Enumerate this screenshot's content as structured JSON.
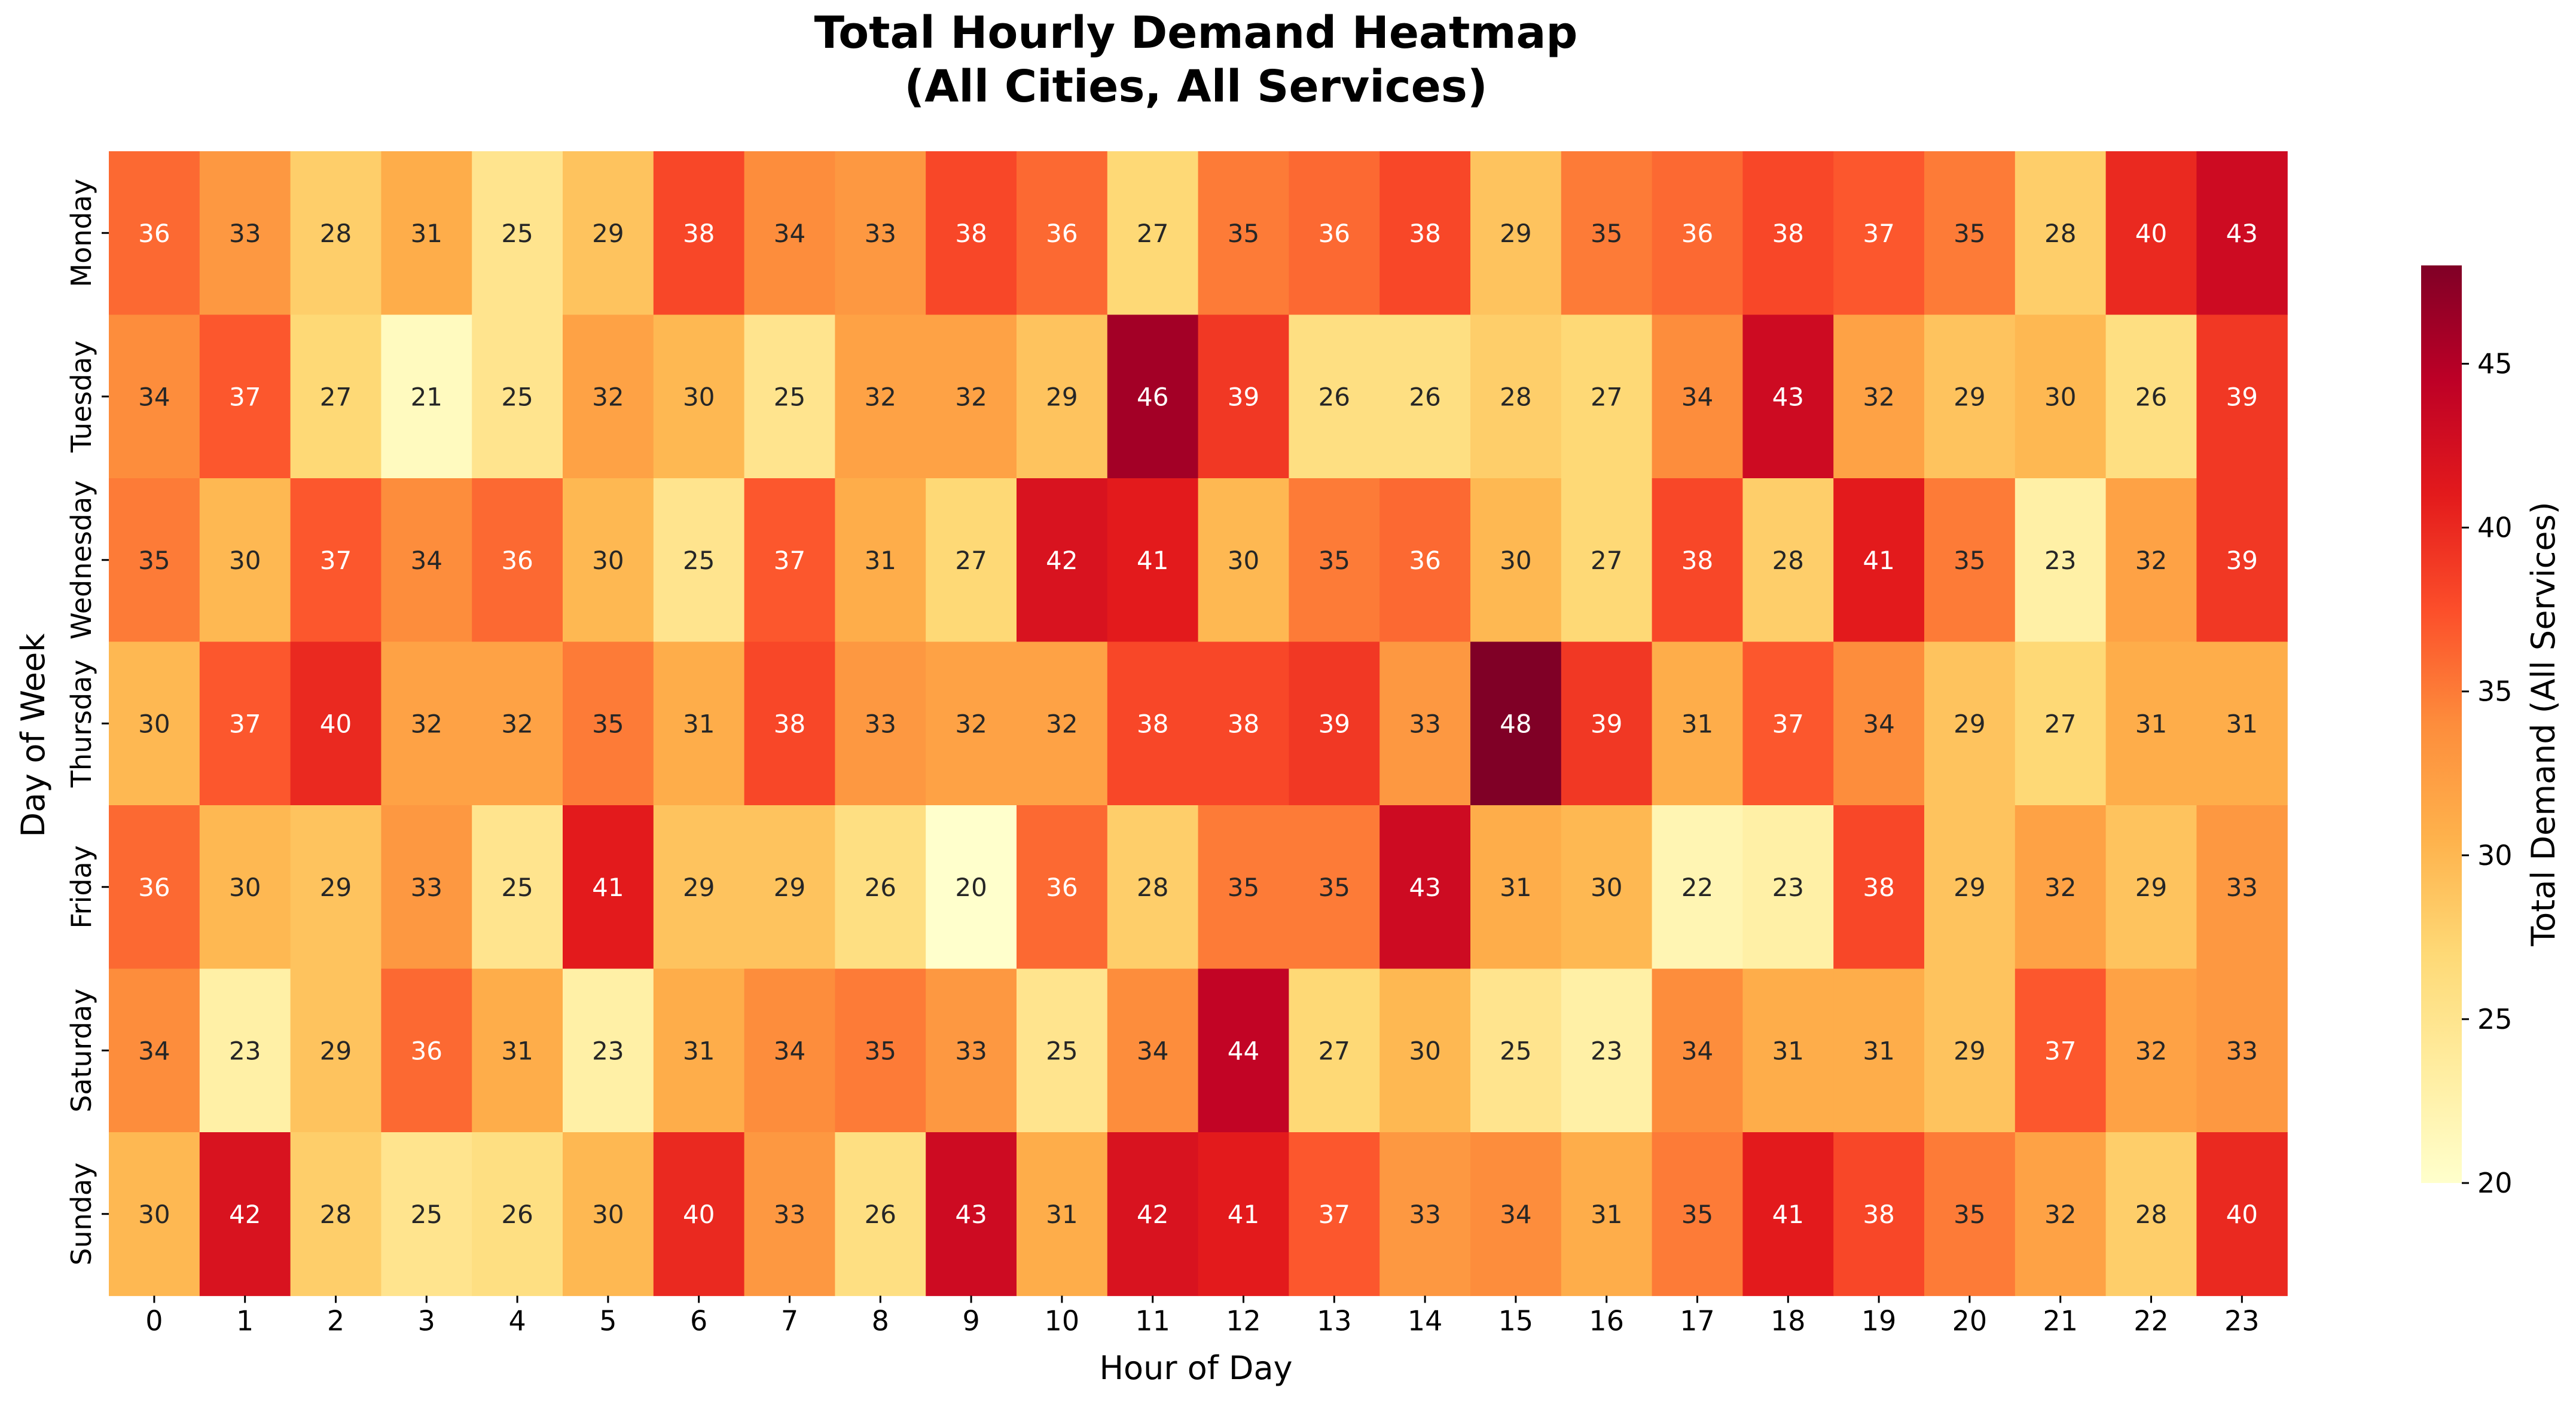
{
  "chart_data": {
    "type": "heatmap",
    "title": "Total Hourly Demand Heatmap",
    "subtitle": "(All Cities, All Services)",
    "xlabel": "Hour of Day",
    "ylabel": "Day of Week",
    "x_categories": [
      "0",
      "1",
      "2",
      "3",
      "4",
      "5",
      "6",
      "7",
      "8",
      "9",
      "10",
      "11",
      "12",
      "13",
      "14",
      "15",
      "16",
      "17",
      "18",
      "19",
      "20",
      "21",
      "22",
      "23"
    ],
    "y_categories": [
      "Monday",
      "Tuesday",
      "Wednesday",
      "Thursday",
      "Friday",
      "Saturday",
      "Sunday"
    ],
    "values": [
      [
        36,
        33,
        28,
        31,
        25,
        29,
        38,
        34,
        33,
        38,
        36,
        27,
        35,
        36,
        38,
        29,
        35,
        36,
        38,
        37,
        35,
        28,
        40,
        43
      ],
      [
        34,
        37,
        27,
        21,
        25,
        32,
        30,
        25,
        32,
        32,
        29,
        46,
        39,
        26,
        26,
        28,
        27,
        34,
        43,
        32,
        29,
        30,
        26,
        39
      ],
      [
        35,
        30,
        37,
        34,
        36,
        30,
        25,
        37,
        31,
        27,
        42,
        41,
        30,
        35,
        36,
        30,
        27,
        38,
        28,
        41,
        35,
        23,
        32,
        39
      ],
      [
        30,
        37,
        40,
        32,
        32,
        35,
        31,
        38,
        33,
        32,
        32,
        38,
        38,
        39,
        33,
        48,
        39,
        31,
        37,
        34,
        29,
        27,
        31,
        31
      ],
      [
        36,
        30,
        29,
        33,
        25,
        41,
        29,
        29,
        26,
        20,
        36,
        28,
        35,
        35,
        43,
        31,
        30,
        22,
        23,
        38,
        29,
        32,
        29,
        33
      ],
      [
        34,
        23,
        29,
        36,
        31,
        23,
        31,
        34,
        35,
        33,
        25,
        34,
        44,
        27,
        30,
        25,
        23,
        34,
        31,
        31,
        29,
        37,
        32,
        33
      ],
      [
        30,
        42,
        28,
        25,
        26,
        30,
        40,
        33,
        26,
        43,
        31,
        42,
        41,
        37,
        33,
        34,
        31,
        35,
        41,
        38,
        35,
        32,
        28,
        40
      ]
    ],
    "colorbar": {
      "label": "Total Demand (All Services)",
      "range": [
        20,
        48
      ],
      "ticks": [
        "20",
        "25",
        "30",
        "35",
        "40",
        "45"
      ],
      "colormap": "YlOrRd"
    },
    "grid": false,
    "legend": "colorbar-right"
  }
}
